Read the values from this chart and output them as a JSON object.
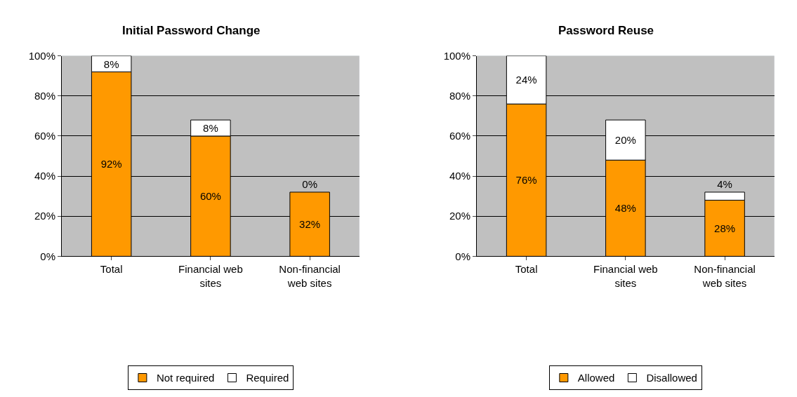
{
  "chart_data": [
    {
      "type": "bar",
      "title": "Initial Password Change",
      "categories": [
        "Total",
        "Financial web sites",
        "Non-financial web sites"
      ],
      "stacked": true,
      "ylim": [
        0,
        100
      ],
      "yticks": [
        {
          "value": 0,
          "label": "0%"
        },
        {
          "value": 20,
          "label": "20%"
        },
        {
          "value": 40,
          "label": "40%"
        },
        {
          "value": 60,
          "label": "60%"
        },
        {
          "value": 80,
          "label": "80%"
        },
        {
          "value": 100,
          "label": "100%"
        }
      ],
      "grid": "y",
      "legend": "bottom",
      "series": [
        {
          "name": "Not required",
          "color": "#ff9900",
          "values": [
            92,
            60,
            32
          ],
          "value_labels": [
            "92%",
            "60%",
            "32%"
          ]
        },
        {
          "name": "Required",
          "color": "#ffffff",
          "values": [
            8,
            8,
            0
          ],
          "value_labels": [
            "8%",
            "8%",
            "0%"
          ]
        }
      ]
    },
    {
      "type": "bar",
      "title": "Password Reuse",
      "categories": [
        "Total",
        "Financial web sites",
        "Non-financial web sites"
      ],
      "stacked": true,
      "ylim": [
        0,
        100
      ],
      "yticks": [
        {
          "value": 0,
          "label": "0%"
        },
        {
          "value": 20,
          "label": "20%"
        },
        {
          "value": 40,
          "label": "40%"
        },
        {
          "value": 60,
          "label": "60%"
        },
        {
          "value": 80,
          "label": "80%"
        },
        {
          "value": 100,
          "label": "100%"
        }
      ],
      "grid": "y",
      "legend": "bottom",
      "series": [
        {
          "name": "Allowed",
          "color": "#ff9900",
          "values": [
            76,
            48,
            28
          ],
          "value_labels": [
            "76%",
            "48%",
            "28%"
          ]
        },
        {
          "name": "Disallowed",
          "color": "#ffffff",
          "values": [
            24,
            20,
            4
          ],
          "value_labels": [
            "24%",
            "20%",
            "4%"
          ]
        }
      ]
    }
  ]
}
